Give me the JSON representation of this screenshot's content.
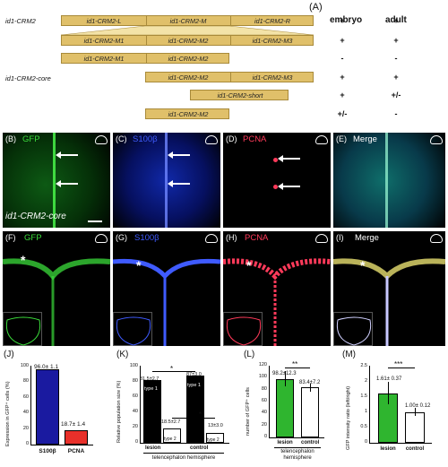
{
  "panel_A": {
    "label": "(A)",
    "col_headers": [
      "embryo",
      "adult"
    ],
    "row_label_crm2": "id1-CRM2",
    "row_label_core": "id1-CRM2-core",
    "rows": [
      {
        "segments": [
          "id1-CRM2-L",
          "id1-CRM2-M",
          "id1-CRM2-R"
        ],
        "embryo": "+",
        "adult": "+"
      },
      {
        "segments": [
          "id1-CRM2-M1",
          "id1-CRM2-M2",
          "id1-CRM2-M3"
        ],
        "embryo": "+",
        "adult": "+"
      },
      {
        "segments": [
          "id1-CRM2-M1",
          "id1-CRM2-M2"
        ],
        "embryo": "-",
        "adult": "-"
      },
      {
        "segments": [
          "id1-CRM2-M2",
          "id1-CRM2-M3"
        ],
        "embryo": "+",
        "adult": "+"
      },
      {
        "segments": [
          "id1-CRM2-short"
        ],
        "embryo": "+",
        "adult": "+/-"
      },
      {
        "segments": [
          "id1-CRM2-M2"
        ],
        "embryo": "+/-",
        "adult": "-"
      }
    ]
  },
  "micrographs": {
    "row1": [
      {
        "label": "(B)",
        "channel": "GFP",
        "color": "#3bdc3b"
      },
      {
        "label": "(C)",
        "channel": "S100β",
        "color": "#3f5bff"
      },
      {
        "label": "(D)",
        "channel": "PCNA",
        "color": "#ff3a5a"
      },
      {
        "label": "(E)",
        "channel": "Merge",
        "color": "#ffffff"
      }
    ],
    "row1_caption": "id1-CRM2-core",
    "row2": [
      {
        "label": "(F)",
        "channel": "GFP",
        "color": "#3bdc3b"
      },
      {
        "label": "(G)",
        "channel": "S100β",
        "color": "#3f5bff"
      },
      {
        "label": "(H)",
        "channel": "PCNA",
        "color": "#ff3a5a"
      },
      {
        "label": "(I)",
        "channel": "Merge",
        "color": "#ffffff"
      }
    ],
    "asterisk": "*"
  },
  "charts": {
    "J": {
      "label": "(J)",
      "ylabel": "Expression in GFP⁺ cells (%)",
      "yticks": [
        "0",
        "20",
        "40",
        "60",
        "80",
        "100"
      ],
      "categories": [
        "S100β",
        "PCNA"
      ],
      "value_labels": [
        "96.0± 1.1",
        "18.7± 1.4"
      ]
    },
    "K": {
      "label": "(K)",
      "ylabel": "Relative population size (%)",
      "yticks": [
        "0",
        "20",
        "40",
        "60",
        "80",
        "100"
      ],
      "categories": [
        "lesion",
        "control"
      ],
      "value_labels": [
        "81.5±2.7",
        "18.5±2.7",
        "87±3.0",
        "13±3.0"
      ],
      "bar_labels": [
        "type 1",
        "type 2",
        "type 1",
        "type 2"
      ],
      "sig": "*",
      "xlabel": "telencephalon hemisphere"
    },
    "L": {
      "label": "(L)",
      "ylabel": "number of GFP⁺ cells",
      "yticks": [
        "0",
        "20",
        "40",
        "60",
        "80",
        "100",
        "120"
      ],
      "categories": [
        "lesion",
        "control"
      ],
      "value_labels": [
        "98.2±12.3",
        "83.4±7.2"
      ],
      "sig": "**",
      "xlabel": "telencephalon hemisphere"
    },
    "M": {
      "label": "(M)",
      "ylabel": "GFP intensity ratio (left/right)",
      "yticks": [
        "0",
        "0.5",
        "1",
        "1.5",
        "2",
        "2.5"
      ],
      "categories": [
        "lesion",
        "control"
      ],
      "value_labels": [
        "1.61± 0.37",
        "1.00± 0.12"
      ],
      "sig": "***"
    }
  },
  "chart_data": [
    {
      "type": "bar",
      "categories": [
        "S100β",
        "PCNA"
      ],
      "values": [
        96.0,
        18.7
      ],
      "ylim": [
        0,
        100
      ],
      "ylabel": "Expression in GFP⁺ cells (%)",
      "colors": [
        "#1a1aa0",
        "#e8302a"
      ]
    },
    {
      "type": "bar",
      "categories": [
        "lesion",
        "control"
      ],
      "series": [
        {
          "name": "type 1",
          "values": [
            81.5,
            87
          ]
        },
        {
          "name": "type 2",
          "values": [
            18.5,
            13
          ]
        }
      ],
      "ylim": [
        0,
        100
      ],
      "ylabel": "Relative population size (%)",
      "xlabel": "telencephalon hemisphere"
    },
    {
      "type": "bar",
      "categories": [
        "lesion",
        "control"
      ],
      "values": [
        98.2,
        83.4
      ],
      "errors": [
        12.3,
        7.2
      ],
      "ylim": [
        0,
        120
      ],
      "ylabel": "number of GFP⁺ cells",
      "xlabel": "telencephalon hemisphere",
      "colors": [
        "#2fb52f",
        "#ffffff"
      ]
    },
    {
      "type": "bar",
      "categories": [
        "lesion",
        "control"
      ],
      "values": [
        1.61,
        1.0
      ],
      "errors": [
        0.37,
        0.12
      ],
      "ylim": [
        0,
        2.5
      ],
      "ylabel": "GFP intensity ratio (left/right)",
      "colors": [
        "#2fb52f",
        "#ffffff"
      ]
    }
  ]
}
